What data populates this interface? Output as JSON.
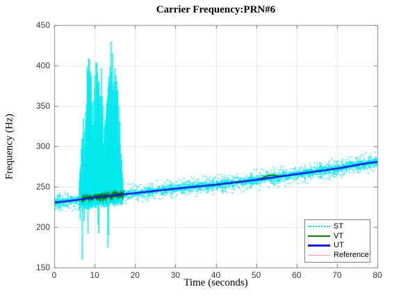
{
  "figure": {
    "title": "Carrier Frequency:PRN#6",
    "xlabel": "Time (seconds)",
    "ylabel": "Frequency (Hz)"
  },
  "legend": {
    "position": "southeast",
    "items": [
      {
        "label": "ST",
        "color": "#00E8EE",
        "style": "dotted",
        "width": 2
      },
      {
        "label": "VT",
        "color": "#087A08",
        "style": "solid",
        "width": 2
      },
      {
        "label": "UT",
        "color": "#1414DC",
        "style": "solid",
        "width": 3
      },
      {
        "label": "Reference",
        "color": "#FF9999",
        "style": "solid",
        "width": 1
      }
    ]
  },
  "chart_data": {
    "type": "line",
    "title": "Carrier Frequency:PRN#6",
    "xlabel": "Time (seconds)",
    "ylabel": "Frequency (Hz)",
    "xlim": [
      0,
      80
    ],
    "ylim": [
      150,
      450
    ],
    "xticks": [
      0,
      10,
      20,
      30,
      40,
      50,
      60,
      70,
      80
    ],
    "yticks": [
      150,
      200,
      250,
      300,
      350,
      400,
      450
    ],
    "grid": true,
    "legend_position": "southeast",
    "style": {
      "background": "#FFFFFF",
      "grid_color": "#E4E4E4",
      "axis_color": "#8A8A8A",
      "tick_color": "#6E6E6E",
      "tick_label_color": "#3A3A3A"
    },
    "series": [
      {
        "name": "ST",
        "color": "#00E8EE",
        "line_style": "dotted",
        "description": "noisy measured track following Reference, with large oscillation burst",
        "baseline": {
          "follows": "Reference",
          "noise_std_hz": 3.2,
          "noise_clip_hz": 8.5
        },
        "burst": {
          "t_start": 6.2,
          "t_end": 16.9,
          "upper_envelope": [
            [
              6.2,
              258
            ],
            [
              6.7,
              300
            ],
            [
              7.1,
              340
            ],
            [
              7.5,
              295
            ],
            [
              8.0,
              395
            ],
            [
              8.5,
              412
            ],
            [
              9.0,
              400
            ],
            [
              9.4,
              345
            ],
            [
              9.9,
              372
            ],
            [
              10.3,
              428
            ],
            [
              10.8,
              375
            ],
            [
              11.3,
              410
            ],
            [
              11.7,
              398
            ],
            [
              12.2,
              318
            ],
            [
              12.7,
              340
            ],
            [
              13.2,
              370
            ],
            [
              13.7,
              425
            ],
            [
              14.1,
              445
            ],
            [
              14.5,
              422
            ],
            [
              15.0,
              404
            ],
            [
              15.5,
              382
            ],
            [
              16.0,
              352
            ],
            [
              16.4,
              305
            ],
            [
              16.9,
              258
            ]
          ],
          "down_spikes": [
            [
              6.9,
              161
            ],
            [
              13.25,
              176
            ]
          ]
        }
      },
      {
        "name": "VT",
        "color": "#087A08",
        "line_style": "solid",
        "noisy_segment": {
          "t_start": 6.8,
          "t_end": 17.3,
          "noise_std_hz": 2.6,
          "noise_clip_hz": 6.5
        },
        "hump": {
          "t_start": 50.0,
          "t_end": 57.5,
          "t_center": 53.4,
          "sigma_s": 1.8,
          "peak_offset_hz": 3.5
        }
      },
      {
        "name": "UT",
        "color": "#1414DC",
        "line_style": "solid",
        "line_width": 2.4,
        "anchors": [
          [
            0,
            230.5
          ],
          [
            10,
            236.5
          ],
          [
            20,
            242
          ],
          [
            30,
            247.5
          ],
          [
            40,
            252.5
          ],
          [
            50,
            258.5
          ],
          [
            60,
            265.5
          ],
          [
            70,
            272.5
          ],
          [
            80,
            280.5
          ]
        ]
      },
      {
        "name": "Reference",
        "color": "#FF9999",
        "line_style": "solid",
        "line_width": 1.2,
        "anchors": [
          [
            0,
            230.5
          ],
          [
            10,
            236.5
          ],
          [
            20,
            242
          ],
          [
            30,
            247.5
          ],
          [
            40,
            252.5
          ],
          [
            50,
            258.5
          ],
          [
            60,
            265.5
          ],
          [
            70,
            272.5
          ],
          [
            80,
            280.5
          ]
        ]
      }
    ]
  }
}
